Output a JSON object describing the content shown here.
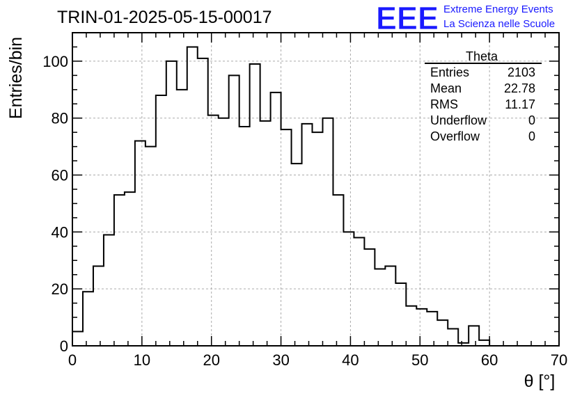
{
  "title": "TRIN-01-2025-05-15-00017",
  "logo": {
    "mark": "EEE",
    "line1": "Extreme Energy Events",
    "line2": "La Scienza nelle Scuole",
    "color": "#1a1aff"
  },
  "chart_data": {
    "type": "histogram",
    "xlabel": "θ [°]",
    "ylabel": "Entries/bin",
    "xlim": [
      0,
      70
    ],
    "ylim": [
      0,
      110
    ],
    "x_ticks": [
      0,
      10,
      20,
      30,
      40,
      50,
      60,
      70
    ],
    "y_ticks": [
      0,
      20,
      40,
      60,
      80,
      100
    ],
    "x_tick_labels": [
      "0",
      "10",
      "20",
      "30",
      "40",
      "50",
      "60",
      "70"
    ],
    "y_tick_labels": [
      "0",
      "20",
      "40",
      "60",
      "80",
      "100"
    ],
    "grid": true,
    "bin_width": 1.5,
    "bin_start": 0,
    "values": [
      5,
      19,
      28,
      39,
      53,
      54,
      72,
      70,
      88,
      100,
      90,
      105,
      101,
      81,
      80,
      95,
      77,
      99,
      79,
      89,
      76,
      64,
      78,
      75,
      80,
      53,
      40,
      38,
      34,
      27,
      28,
      22,
      14,
      13,
      12,
      9,
      6,
      1,
      7,
      2,
      0,
      0,
      0,
      0,
      0,
      0,
      0
    ]
  },
  "stats": {
    "name": "Theta",
    "rows": [
      {
        "label": "Entries",
        "value": "2103"
      },
      {
        "label": "Mean",
        "value": "22.78"
      },
      {
        "label": "RMS",
        "value": "11.17"
      },
      {
        "label": "Underflow",
        "value": "0"
      },
      {
        "label": "Overflow",
        "value": "0"
      }
    ]
  }
}
